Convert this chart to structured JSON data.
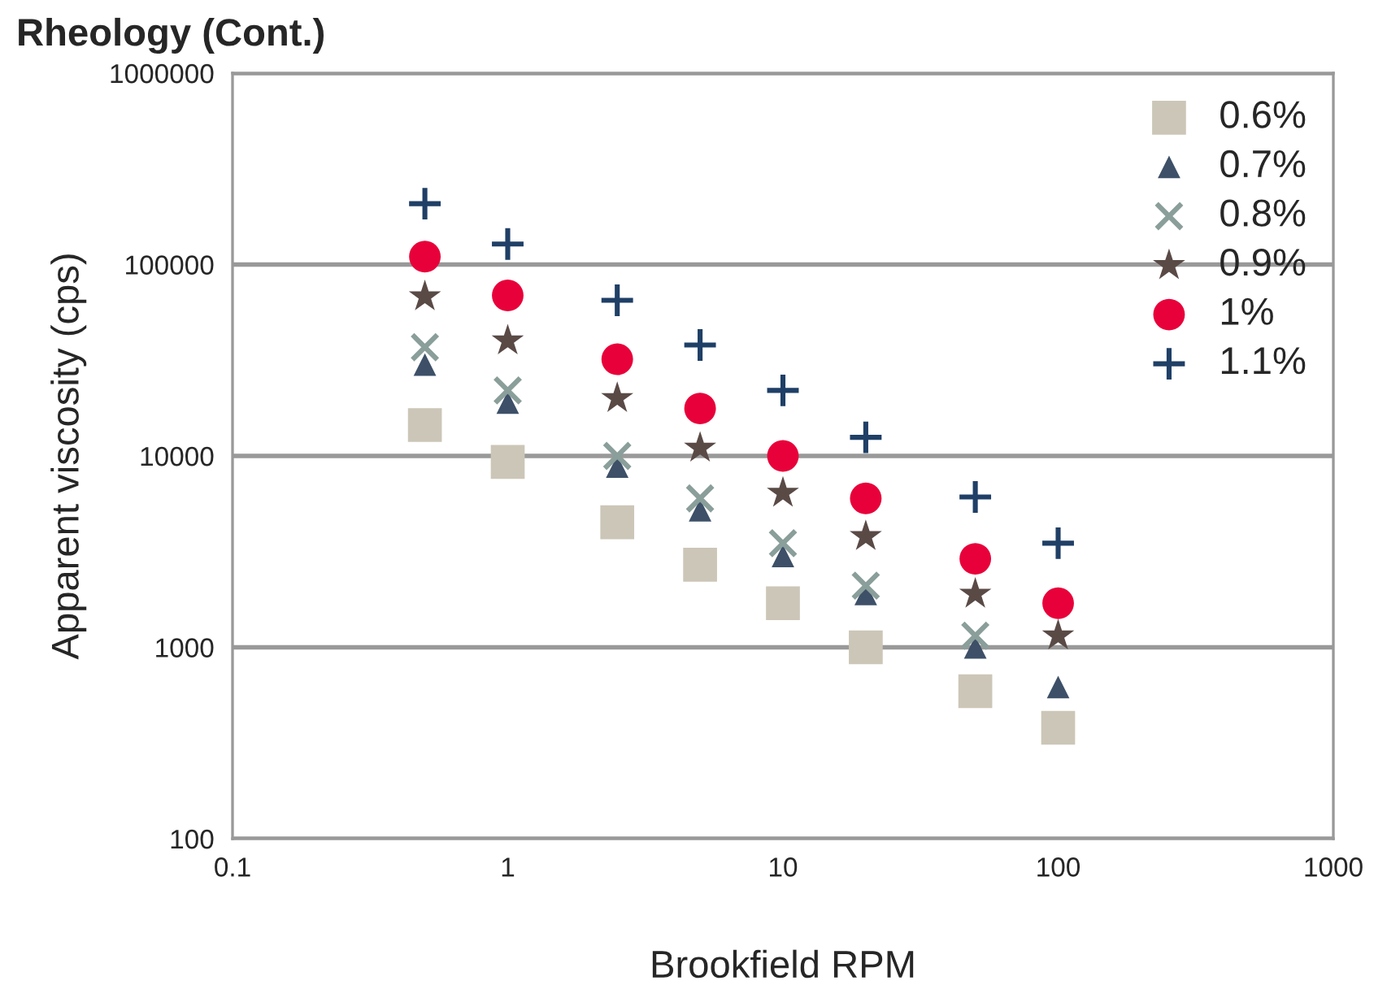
{
  "chart_data": {
    "type": "scatter",
    "title": "Rheology (Cont.)",
    "xlabel": "Brookfield RPM",
    "ylabel": "Apparent viscosity (cps)",
    "log": "xy",
    "x": [
      0.5,
      1,
      2.5,
      5,
      10,
      20,
      50,
      100
    ],
    "series": [
      {
        "name": "0.6%",
        "color": "#ccc6b8",
        "marker": "square",
        "values": [
          14500,
          9300,
          4500,
          2700,
          1700,
          1000,
          590,
          380
        ]
      },
      {
        "name": "0.7%",
        "color": "#3d5068",
        "marker": "triangle",
        "values": [
          30000,
          19000,
          8800,
          5200,
          3000,
          1900,
          1000,
          620
        ]
      },
      {
        "name": "0.8%",
        "color": "#8a9e9a",
        "marker": "cross",
        "values": [
          37000,
          22000,
          10000,
          6000,
          3500,
          2100,
          1150,
          null
        ]
      },
      {
        "name": "0.9%",
        "color": "#5a4a46",
        "marker": "star",
        "values": [
          68000,
          40000,
          20000,
          11000,
          6400,
          3800,
          1900,
          1150
        ]
      },
      {
        "name": "1%",
        "color": "#e8003a",
        "marker": "circle",
        "values": [
          110000,
          69000,
          32000,
          17700,
          10000,
          6000,
          2900,
          1700
        ]
      },
      {
        "name": "1.1%",
        "color": "#1f3f66",
        "values": [
          208000,
          128000,
          65000,
          38000,
          22000,
          12500,
          6100,
          3500
        ]
      }
    ],
    "xlim": [
      0.1,
      1000
    ],
    "xticks": [
      0.1,
      1,
      10,
      100,
      1000
    ],
    "ylim": [
      100,
      1000000
    ],
    "yticks": [
      100,
      1000,
      10000,
      100000,
      1000000
    ],
    "grid": "y",
    "legend": "top right"
  }
}
